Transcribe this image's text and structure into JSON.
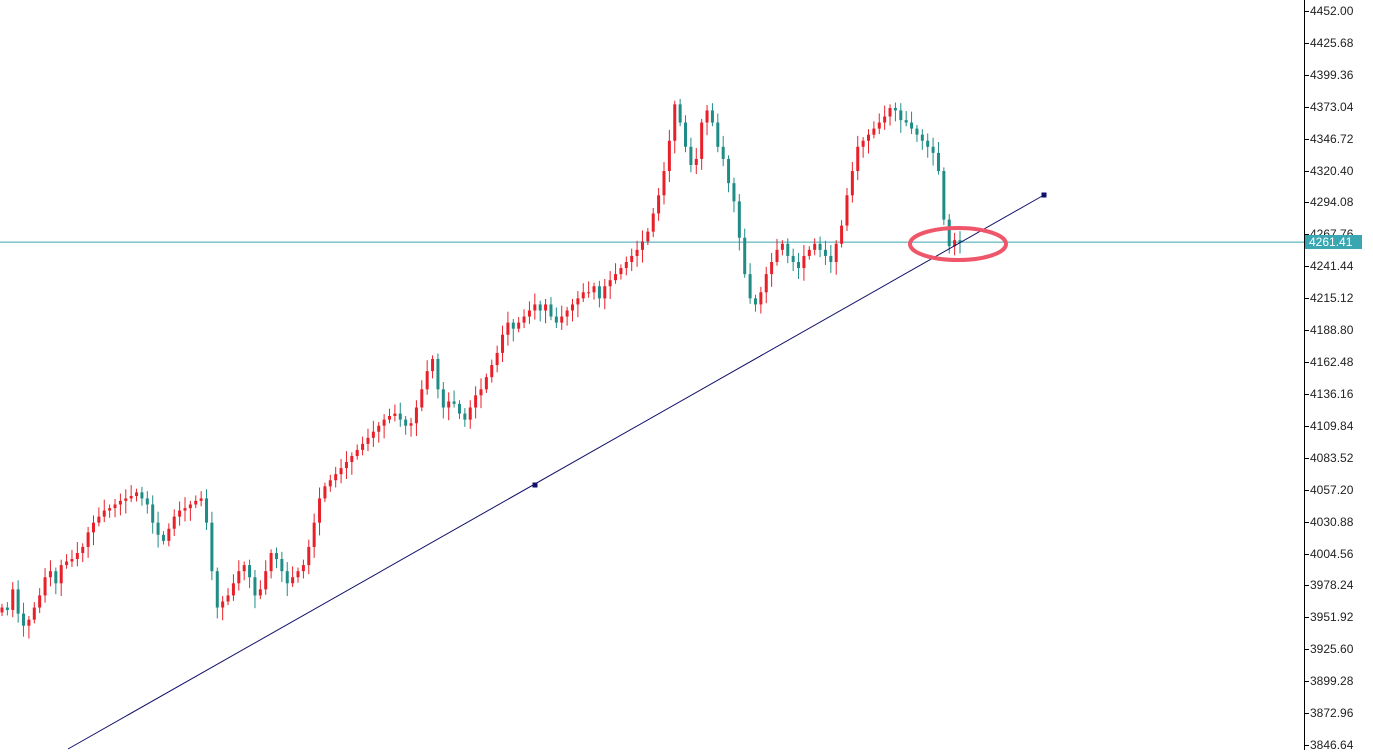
{
  "colors": {
    "bull": "#e8202a",
    "bear": "#1f8c85",
    "trendline": "#10106a",
    "price_line": "#3aa6b1",
    "price_tag_bg": "#3aa6b1",
    "highlight": "#f0566a"
  },
  "price_axis": {
    "ticks": [
      "4452.00",
      "4425.68",
      "4399.36",
      "4373.04",
      "4346.72",
      "4320.40",
      "4294.08",
      "4267.76",
      "4241.44",
      "4215.12",
      "4188.80",
      "4162.48",
      "4136.16",
      "4109.84",
      "4083.52",
      "4057.20",
      "4030.88",
      "4004.56",
      "3978.24",
      "3951.92",
      "3925.60",
      "3899.28",
      "3872.96",
      "3846.64"
    ],
    "current_price": "4261.41"
  },
  "chart_data": {
    "type": "candlestick",
    "y_unit": "price",
    "ylim": [
      3846.64,
      4452.0
    ],
    "grid": false,
    "current_price": 4261.41,
    "candle_closes": [
      3960,
      3958,
      3975,
      3955,
      3945,
      3950,
      3960,
      3970,
      3985,
      3990,
      3980,
      3995,
      3998,
      4000,
      4005,
      4010,
      4022,
      4030,
      4035,
      4040,
      4042,
      4045,
      4048,
      4050,
      4052,
      4055,
      4050,
      4045,
      4030,
      4020,
      4015,
      4025,
      4035,
      4040,
      4042,
      4045,
      4048,
      4050,
      4030,
      3990,
      3960,
      3965,
      3970,
      3980,
      3990,
      3995,
      3985,
      3970,
      3975,
      3990,
      4005,
      4000,
      3990,
      3980,
      3985,
      3990,
      3995,
      4010,
      4030,
      4050,
      4060,
      4065,
      4070,
      4075,
      4080,
      4085,
      4090,
      4095,
      4100,
      4105,
      4110,
      4115,
      4118,
      4120,
      4115,
      4110,
      4112,
      4125,
      4140,
      4155,
      4165,
      4140,
      4125,
      4130,
      4128,
      4120,
      4115,
      4125,
      4135,
      4140,
      4150,
      4160,
      4170,
      4185,
      4195,
      4190,
      4195,
      4200,
      4205,
      4210,
      4205,
      4210,
      4200,
      4195,
      4200,
      4205,
      4210,
      4215,
      4220,
      4220,
      4225,
      4215,
      4225,
      4230,
      4235,
      4240,
      4245,
      4250,
      4255,
      4262,
      4270,
      4285,
      4300,
      4320,
      4345,
      4375,
      4360,
      4340,
      4325,
      4330,
      4360,
      4370,
      4360,
      4340,
      4330,
      4310,
      4295,
      4265,
      4235,
      4215,
      4210,
      4220,
      4235,
      4245,
      4255,
      4260,
      4250,
      4245,
      4240,
      4250,
      4255,
      4260,
      4255,
      4250,
      4245,
      4260,
      4275,
      4300,
      4320,
      4340,
      4345,
      4350,
      4355,
      4360,
      4365,
      4372,
      4370,
      4362,
      4360,
      4355,
      4350,
      4345,
      4340,
      4335,
      4320,
      4280,
      4258,
      4263,
      4261
    ],
    "highs": [
      null
    ],
    "trendline": {
      "points": [
        [
          0,
          3835
        ],
        [
          1,
          4300
        ]
      ]
    },
    "annotations": [
      {
        "type": "ellipse",
        "at_price": 4261.41,
        "near": "last candles"
      }
    ]
  }
}
